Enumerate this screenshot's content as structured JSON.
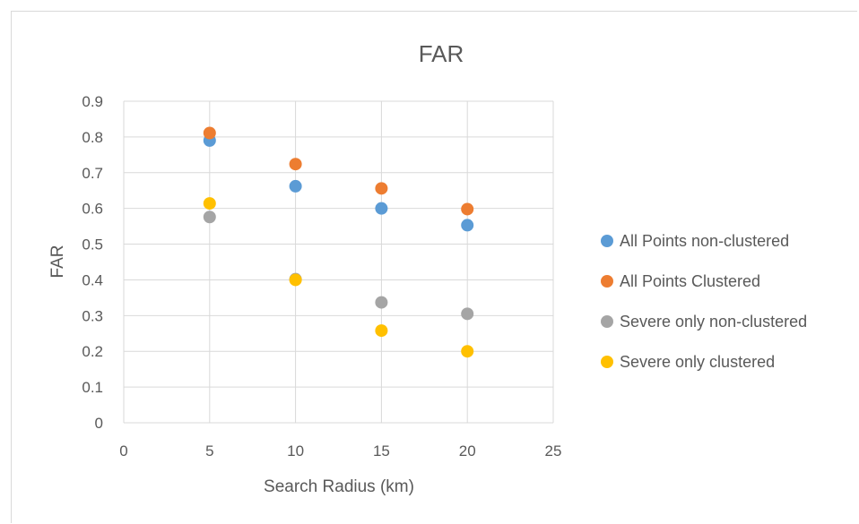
{
  "chart_data": {
    "type": "scatter",
    "title": "FAR",
    "xlabel": "Search Radius (km)",
    "ylabel": "FAR",
    "xlim": [
      0,
      25
    ],
    "ylim": [
      0,
      0.9
    ],
    "xticks": [
      "0",
      "5",
      "10",
      "15",
      "20",
      "25"
    ],
    "yticks": [
      "0",
      "0.1",
      "0.2",
      "0.3",
      "0.4",
      "0.5",
      "0.6",
      "0.7",
      "0.8",
      "0.9"
    ],
    "grid": true,
    "legend_position": "right",
    "series": [
      {
        "name": "All Points non-clustered",
        "color": "#5b9bd5",
        "x": [
          5,
          10,
          15,
          20
        ],
        "y": [
          0.79,
          0.662,
          0.6,
          0.553
        ]
      },
      {
        "name": "All Points Clustered",
        "color": "#ed7d31",
        "x": [
          5,
          10,
          15,
          20
        ],
        "y": [
          0.811,
          0.724,
          0.656,
          0.598
        ]
      },
      {
        "name": "Severe only non-clustered",
        "color": "#a5a5a5",
        "x": [
          5,
          10,
          15,
          20
        ],
        "y": [
          0.576,
          0.402,
          0.337,
          0.305
        ]
      },
      {
        "name": "Severe only clustered",
        "color": "#ffc000",
        "x": [
          5,
          10,
          15,
          20
        ],
        "y": [
          0.614,
          0.4,
          0.258,
          0.2
        ]
      }
    ]
  }
}
